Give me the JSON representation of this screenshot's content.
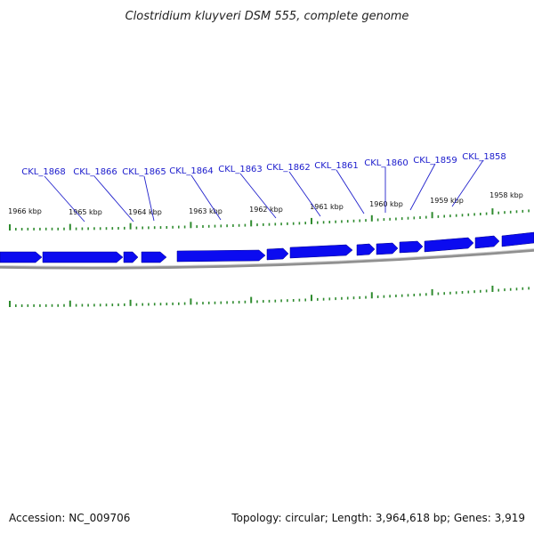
{
  "title": "Clostridium kluyveri DSM 555, complete genome",
  "footer": {
    "accession": "Accession: NC_009706",
    "summary": "Topology: circular; Length: 3,964,618 bp; Genes: 3,919"
  },
  "colors": {
    "gene_fill": "#0b0bf0",
    "gene_label": "#1a1acc",
    "tick": "#2e8b2e",
    "backbone": "#808080"
  },
  "kbp_labels": [
    "1966 kbp",
    "1965 kbp",
    "1964 kbp",
    "1963 kbp",
    "1962 kbp",
    "1961 kbp",
    "1960 kbp",
    "1959 kbp",
    "1958 kbp"
  ],
  "gene_labels": [
    "CKL_1868",
    "CKL_1866",
    "CKL_1865",
    "CKL_1864",
    "CKL_1863",
    "CKL_1862",
    "CKL_1861",
    "CKL_1860",
    "CKL_1859",
    "CKL_1858"
  ]
}
